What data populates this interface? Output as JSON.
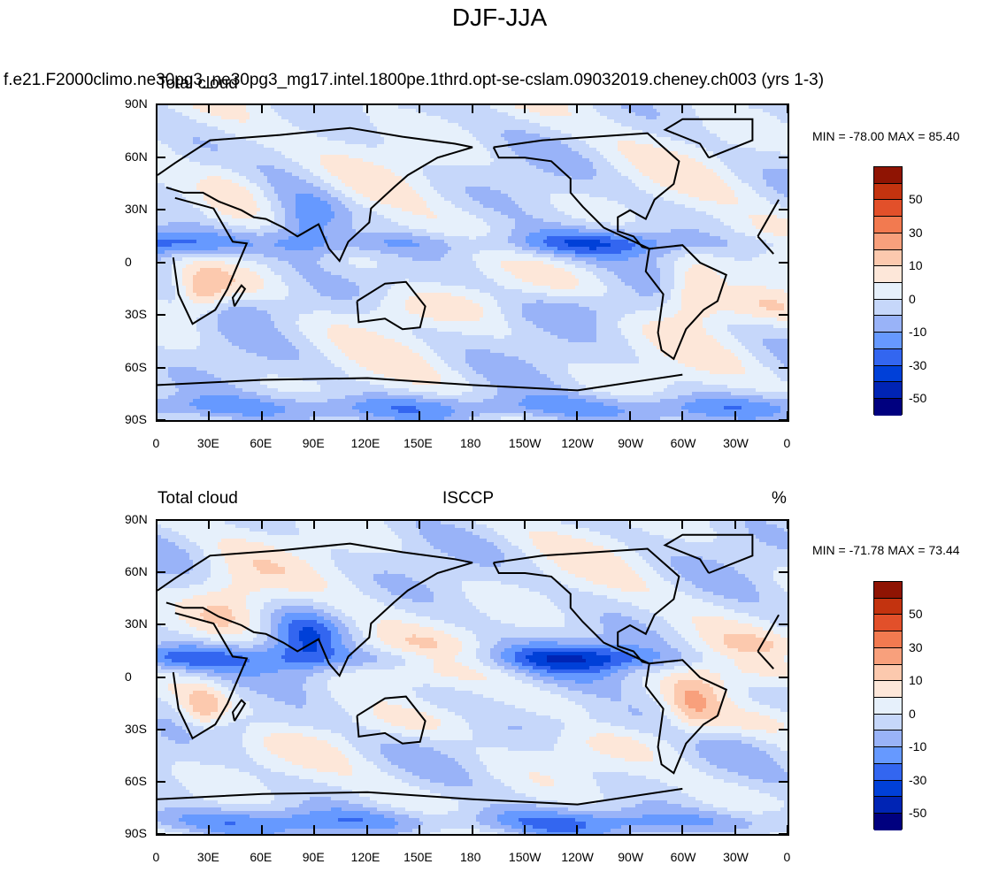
{
  "title": "DJF-JJA",
  "run_title": "f.e21.F2000climo.ne30pg3_ne30pg3_mg17.intel.1800pe.1thrd.opt-se-cslam.09032019.cheney.ch003 (yrs 1-3)",
  "colors": {
    "scale": [
      "#00007f",
      "#0024b4",
      "#0040d8",
      "#3366f0",
      "#6699ff",
      "#99b3f8",
      "#c6d7fa",
      "#e6f0fb",
      "#fde7d9",
      "#fcc9ae",
      "#f8a07c",
      "#f27a50",
      "#e2502a",
      "#c3330f",
      "#8f1403"
    ]
  },
  "colorbar_labels": [
    "50",
    "30",
    "10",
    "0",
    "-10",
    "-30",
    "-50"
  ],
  "axes": {
    "lat_labels": [
      "90N",
      "60N",
      "30N",
      "0",
      "30S",
      "60S",
      "90S"
    ],
    "lon_labels": [
      "0",
      "30E",
      "60E",
      "90E",
      "120E",
      "150E",
      "180",
      "150W",
      "120W",
      "90W",
      "60W",
      "30W",
      "0"
    ]
  },
  "panels": [
    {
      "left": "Total cloud",
      "center": "",
      "right": "",
      "minmax": "MIN = -78.00 MAX =  85.40"
    },
    {
      "left": "Total cloud",
      "center": "ISCCP",
      "right": "%",
      "minmax": "MIN = -71.78 MAX =  73.44"
    }
  ]
}
